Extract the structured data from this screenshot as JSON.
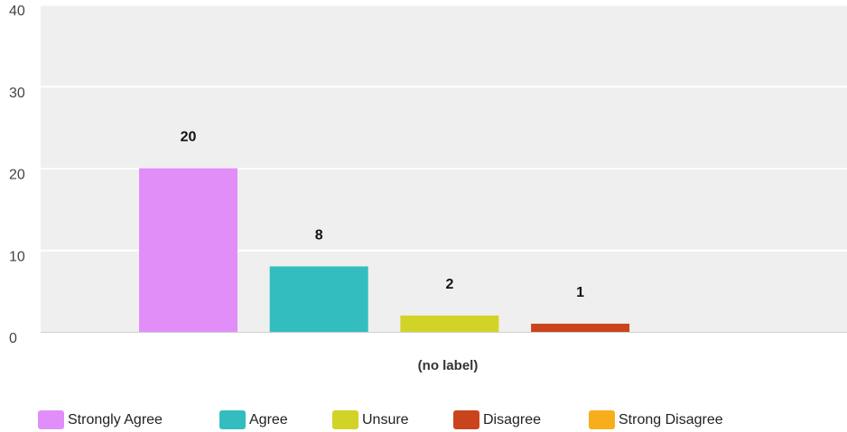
{
  "chart_data": {
    "type": "bar",
    "xlabel": "(no label)",
    "ylabel": "",
    "ylim": [
      0,
      40
    ],
    "yticks": [
      0,
      10,
      20,
      30,
      40
    ],
    "grid": true,
    "legend_position": "bottom",
    "series": [
      {
        "name": "Strongly Agree",
        "value": 20,
        "color": "#e28ef9"
      },
      {
        "name": "Agree",
        "value": 8,
        "color": "#33bdbf"
      },
      {
        "name": "Unsure",
        "value": 2,
        "color": "#d1d327"
      },
      {
        "name": "Disagree",
        "value": 1,
        "color": "#c9441d"
      },
      {
        "name": "Strong Disagree",
        "value": 0,
        "color": "#f8ae1c"
      }
    ]
  }
}
